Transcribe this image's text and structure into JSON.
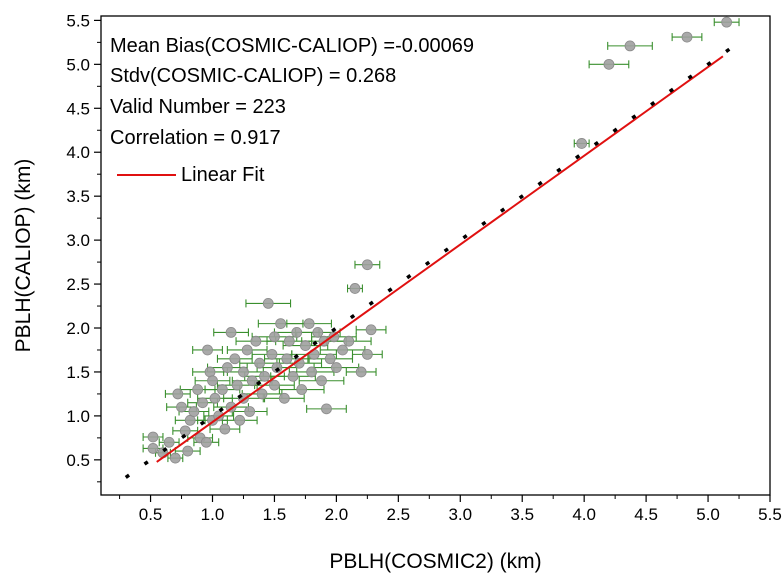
{
  "chart_data": {
    "type": "scatter",
    "xlabel": "PBLH(COSMIC2) (km)",
    "ylabel": "PBLH(CALIOP) (km)",
    "xlim": [
      0.1,
      5.5
    ],
    "ylim": [
      0.1,
      5.55
    ],
    "x_ticks": [
      "0.5",
      "1.0",
      "1.5",
      "2.0",
      "2.5",
      "3.0",
      "3.5",
      "4.0",
      "4.5",
      "5.0",
      "5.5"
    ],
    "y_ticks": [
      "0.5",
      "1.0",
      "1.5",
      "2.0",
      "2.5",
      "3.0",
      "3.5",
      "4.0",
      "4.5",
      "5.0",
      "5.5"
    ],
    "grid": false,
    "annotations": [
      "Mean Bias(COSMIC-CALIOP) =-0.00069",
      "Stdv(COSMIC-CALIOP) = 0.268",
      "Valid Number = 223",
      "Correlation = 0.917"
    ],
    "legend": {
      "label": "Linear Fit",
      "placement": "top-left"
    },
    "colors": {
      "points": "#a0a0a0",
      "point_edge": "#8a8a8a",
      "error_bars": "#3a8f2e",
      "fit_line": "#e01010",
      "one_to_one": "#000000"
    },
    "fit_line": {
      "slope": 1.01,
      "intercept": -0.08,
      "x_range": [
        0.55,
        5.12
      ]
    },
    "one_to_one_line": {
      "x_range": [
        0.3,
        5.27
      ]
    },
    "points": [
      {
        "x": 0.52,
        "y": 0.76,
        "xerr": 0.08
      },
      {
        "x": 0.52,
        "y": 0.63,
        "xerr": 0.08
      },
      {
        "x": 0.6,
        "y": 0.58,
        "xerr": 0.06
      },
      {
        "x": 0.65,
        "y": 0.7,
        "xerr": 0.08
      },
      {
        "x": 0.7,
        "y": 0.52,
        "xerr": 0.06
      },
      {
        "x": 0.72,
        "y": 1.25,
        "xerr": 0.1
      },
      {
        "x": 0.75,
        "y": 1.1,
        "xerr": 0.12
      },
      {
        "x": 0.78,
        "y": 0.83,
        "xerr": 0.1
      },
      {
        "x": 0.8,
        "y": 0.6,
        "xerr": 0.1
      },
      {
        "x": 0.82,
        "y": 0.95,
        "xerr": 0.12
      },
      {
        "x": 0.85,
        "y": 1.05,
        "xerr": 0.12
      },
      {
        "x": 0.88,
        "y": 1.3,
        "xerr": 0.14
      },
      {
        "x": 0.9,
        "y": 0.75,
        "xerr": 0.1
      },
      {
        "x": 0.92,
        "y": 1.15,
        "xerr": 0.12
      },
      {
        "x": 0.95,
        "y": 0.7,
        "xerr": 0.1
      },
      {
        "x": 0.96,
        "y": 1.75,
        "xerr": 0.12
      },
      {
        "x": 0.98,
        "y": 1.5,
        "xerr": 0.14
      },
      {
        "x": 1.0,
        "y": 1.4,
        "xerr": 0.14
      },
      {
        "x": 1.0,
        "y": 0.95,
        "xerr": 0.12
      },
      {
        "x": 1.02,
        "y": 1.2,
        "xerr": 0.14
      },
      {
        "x": 1.05,
        "y": 1.0,
        "xerr": 0.12
      },
      {
        "x": 1.08,
        "y": 1.3,
        "xerr": 0.14
      },
      {
        "x": 1.1,
        "y": 0.85,
        "xerr": 0.12
      },
      {
        "x": 1.12,
        "y": 1.55,
        "xerr": 0.16
      },
      {
        "x": 1.15,
        "y": 1.95,
        "xerr": 0.14
      },
      {
        "x": 1.15,
        "y": 1.1,
        "xerr": 0.14
      },
      {
        "x": 1.18,
        "y": 1.65,
        "xerr": 0.14
      },
      {
        "x": 1.2,
        "y": 1.35,
        "xerr": 0.16
      },
      {
        "x": 1.22,
        "y": 0.95,
        "xerr": 0.14
      },
      {
        "x": 1.25,
        "y": 1.5,
        "xerr": 0.16
      },
      {
        "x": 1.25,
        "y": 1.2,
        "xerr": 0.16
      },
      {
        "x": 1.28,
        "y": 1.75,
        "xerr": 0.16
      },
      {
        "x": 1.3,
        "y": 1.05,
        "xerr": 0.14
      },
      {
        "x": 1.32,
        "y": 1.4,
        "xerr": 0.16
      },
      {
        "x": 1.35,
        "y": 1.85,
        "xerr": 0.16
      },
      {
        "x": 1.38,
        "y": 1.6,
        "xerr": 0.16
      },
      {
        "x": 1.4,
        "y": 1.25,
        "xerr": 0.16
      },
      {
        "x": 1.42,
        "y": 1.45,
        "xerr": 0.16
      },
      {
        "x": 1.45,
        "y": 2.28,
        "xerr": 0.18
      },
      {
        "x": 1.48,
        "y": 1.7,
        "xerr": 0.16
      },
      {
        "x": 1.5,
        "y": 1.35,
        "xerr": 0.16
      },
      {
        "x": 1.5,
        "y": 1.9,
        "xerr": 0.18
      },
      {
        "x": 1.52,
        "y": 1.55,
        "xerr": 0.16
      },
      {
        "x": 1.55,
        "y": 2.05,
        "xerr": 0.18
      },
      {
        "x": 1.58,
        "y": 1.2,
        "xerr": 0.16
      },
      {
        "x": 1.6,
        "y": 1.65,
        "xerr": 0.18
      },
      {
        "x": 1.62,
        "y": 1.85,
        "xerr": 0.18
      },
      {
        "x": 1.65,
        "y": 1.45,
        "xerr": 0.18
      },
      {
        "x": 1.68,
        "y": 1.95,
        "xerr": 0.18
      },
      {
        "x": 1.7,
        "y": 1.6,
        "xerr": 0.18
      },
      {
        "x": 1.72,
        "y": 1.3,
        "xerr": 0.18
      },
      {
        "x": 1.75,
        "y": 1.8,
        "xerr": 0.18
      },
      {
        "x": 1.78,
        "y": 2.05,
        "xerr": 0.18
      },
      {
        "x": 1.8,
        "y": 1.5,
        "xerr": 0.18
      },
      {
        "x": 1.82,
        "y": 1.7,
        "xerr": 0.18
      },
      {
        "x": 1.85,
        "y": 1.95,
        "xerr": 0.18
      },
      {
        "x": 1.88,
        "y": 1.4,
        "xerr": 0.18
      },
      {
        "x": 1.9,
        "y": 1.85,
        "xerr": 0.18
      },
      {
        "x": 1.92,
        "y": 1.08,
        "xerr": 0.16
      },
      {
        "x": 1.95,
        "y": 1.65,
        "xerr": 0.18
      },
      {
        "x": 1.98,
        "y": 1.9,
        "xerr": 0.18
      },
      {
        "x": 2.0,
        "y": 1.55,
        "xerr": 0.18
      },
      {
        "x": 2.05,
        "y": 1.75,
        "xerr": 0.18
      },
      {
        "x": 2.1,
        "y": 1.85,
        "xerr": 0.18
      },
      {
        "x": 2.15,
        "y": 2.45,
        "xerr": 0.06
      },
      {
        "x": 2.2,
        "y": 1.5,
        "xerr": 0.12
      },
      {
        "x": 2.25,
        "y": 2.72,
        "xerr": 0.1
      },
      {
        "x": 2.25,
        "y": 1.7,
        "xerr": 0.12
      },
      {
        "x": 2.28,
        "y": 1.98,
        "xerr": 0.12
      },
      {
        "x": 3.98,
        "y": 4.1,
        "xerr": 0.06
      },
      {
        "x": 4.2,
        "y": 5.0,
        "xerr": 0.16
      },
      {
        "x": 4.37,
        "y": 5.21,
        "xerr": 0.18
      },
      {
        "x": 4.83,
        "y": 5.31,
        "xerr": 0.12
      },
      {
        "x": 5.15,
        "y": 5.48,
        "xerr": 0.1
      }
    ]
  }
}
